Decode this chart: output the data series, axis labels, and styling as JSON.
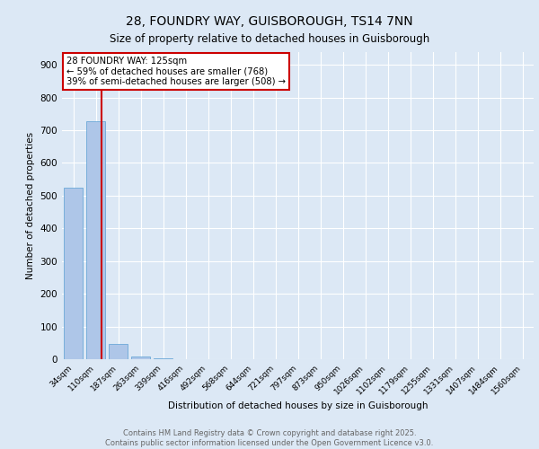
{
  "title1": "28, FOUNDRY WAY, GUISBOROUGH, TS14 7NN",
  "title2": "Size of property relative to detached houses in Guisborough",
  "xlabel": "Distribution of detached houses by size in Guisborough",
  "ylabel": "Number of detached properties",
  "categories": [
    "34sqm",
    "110sqm",
    "187sqm",
    "263sqm",
    "339sqm",
    "416sqm",
    "492sqm",
    "568sqm",
    "644sqm",
    "721sqm",
    "797sqm",
    "873sqm",
    "950sqm",
    "1026sqm",
    "1102sqm",
    "1179sqm",
    "1255sqm",
    "1331sqm",
    "1407sqm",
    "1484sqm",
    "1560sqm"
  ],
  "values": [
    525,
    727,
    46,
    8,
    2,
    0,
    0,
    0,
    0,
    0,
    0,
    0,
    0,
    0,
    0,
    0,
    0,
    0,
    0,
    0,
    0
  ],
  "bar_color": "#aec6e8",
  "bar_edge_color": "#5a9fd4",
  "background_color": "#dce8f5",
  "grid_color": "#ffffff",
  "fig_background": "#dce8f5",
  "red_line_x": 1.27,
  "annotation_line1": "28 FOUNDRY WAY: 125sqm",
  "annotation_line2": "← 59% of detached houses are smaller (768)",
  "annotation_line3": "39% of semi-detached houses are larger (508) →",
  "annotation_box_color": "#ffffff",
  "annotation_border_color": "#cc0000",
  "footer_line1": "Contains HM Land Registry data © Crown copyright and database right 2025.",
  "footer_line2": "Contains public sector information licensed under the Open Government Licence v3.0.",
  "ylim": [
    0,
    940
  ],
  "yticks": [
    0,
    100,
    200,
    300,
    400,
    500,
    600,
    700,
    800,
    900
  ]
}
